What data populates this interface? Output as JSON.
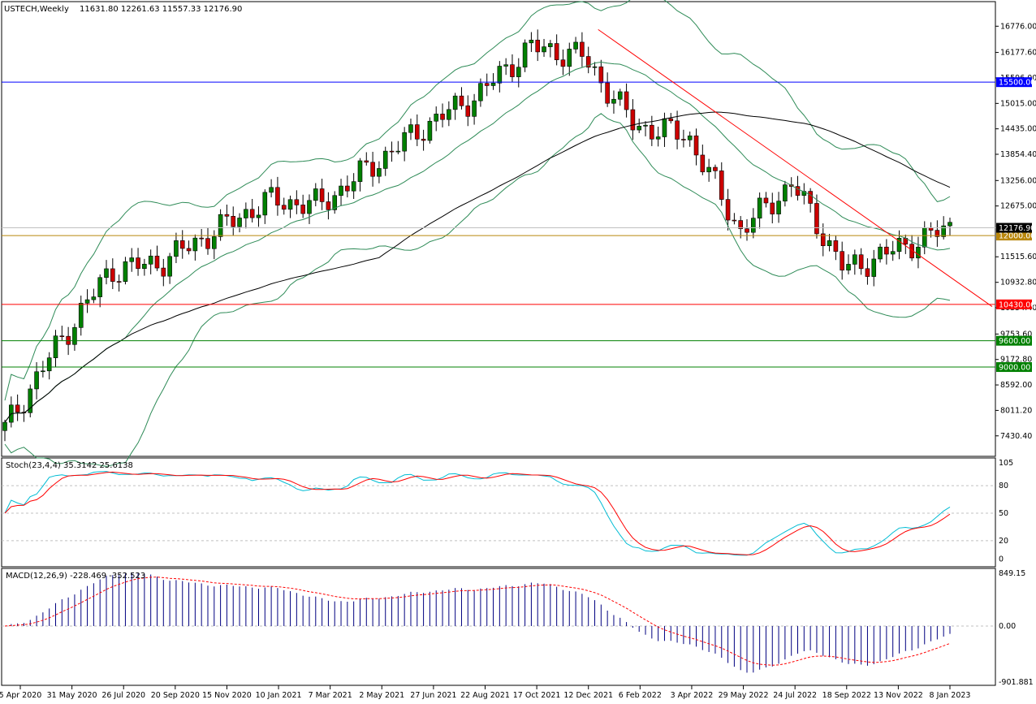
{
  "header": {
    "symbol": "USTECH,Weekly",
    "ohlc": "11631.80 12261.63 11557.33 12176.90"
  },
  "chart_data": {
    "type": "candlestick",
    "symbol": "USTECH",
    "timeframe": "Weekly",
    "price_axis_ticks": [
      "16776.00",
      "16177.60",
      "15596.00",
      "15015.00",
      "14435.00",
      "13854.40",
      "13256.00",
      "12675.00",
      "12176.90",
      "11515.60",
      "10932.80",
      "10354.40",
      "9753.60",
      "9172.80",
      "8592.00",
      "8011.20",
      "7430.40"
    ],
    "date_labels": [
      "5 Apr 2020",
      "31 May 2020",
      "26 Jul 2020",
      "20 Sep 2020",
      "15 Nov 2020",
      "10 Jan 2021",
      "7 Mar 2021",
      "2 May 2021",
      "27 Jun 2021",
      "22 Aug 2021",
      "17 Oct 2021",
      "12 Dec 2021",
      "6 Feb 2022",
      "3 Apr 2022",
      "29 May 2022",
      "24 Jul 2022",
      "18 Sep 2022",
      "13 Nov 2022",
      "8 Jan 2023"
    ],
    "ylim": [
      7430.4,
      17200
    ],
    "horizontal_levels": [
      {
        "label": "15500.00",
        "price": 15500,
        "color": "#0000ff"
      },
      {
        "label": "12000.00",
        "price": 12000,
        "color": "#b8860b"
      },
      {
        "label": "10430.00",
        "price": 10430,
        "color": "#ff0000"
      },
      {
        "label": "9600.00",
        "price": 9600,
        "color": "#008000"
      },
      {
        "label": "9000.00",
        "price": 9000,
        "color": "#008000"
      }
    ],
    "last_price": {
      "label": "12176.90",
      "value": 12176.9
    },
    "trendline": {
      "from_date": "12 Dec 2021",
      "from_price": 16700,
      "to_date": "8 Jan 2023+",
      "to_price": 10380,
      "color": "#ff0000"
    },
    "weekly_close_anchors": [
      {
        "date": "5 Apr 2020",
        "close": 7600
      },
      {
        "date": "31 May 2020",
        "close": 9500
      },
      {
        "date": "26 Jul 2020",
        "close": 11200
      },
      {
        "date": "20 Sep 2020",
        "close": 11400
      },
      {
        "date": "15 Nov 2020",
        "close": 12100
      },
      {
        "date": "10 Jan 2021",
        "close": 12800
      },
      {
        "date": "7 Mar 2021",
        "close": 12700
      },
      {
        "date": "2 May 2021",
        "close": 13600
      },
      {
        "date": "27 Jun 2021",
        "close": 14500
      },
      {
        "date": "22 Aug 2021",
        "close": 15200
      },
      {
        "date": "17 Oct 2021",
        "close": 16300
      },
      {
        "date": "12 Dec 2021",
        "close": 16100
      },
      {
        "date": "6 Feb 2022",
        "close": 14500
      },
      {
        "date": "3 Apr 2022",
        "close": 14300
      },
      {
        "date": "29 May 2022",
        "close": 12100
      },
      {
        "date": "24 Jul 2022",
        "close": 13200
      },
      {
        "date": "18 Sep 2022",
        "close": 11200
      },
      {
        "date": "13 Nov 2022",
        "close": 11700
      },
      {
        "date": "8 Jan 2023",
        "close": 12176.9
      }
    ],
    "moving_average_color": "#000000",
    "bollinger_color": "#2e8b57",
    "bull_color": "#008000",
    "bear_color": "#cc0000"
  },
  "stoch": {
    "label": "Stoch(23,4,4) 35.3142 25.6138",
    "ticks": [
      "105",
      "80",
      "50",
      "20",
      "0"
    ],
    "extra_tick": "-5.00",
    "k_color": "#00bcd4",
    "d_color": "#ff0000"
  },
  "macd": {
    "label": "MACD(12,26,9) -228.469 -352.523",
    "ticks": [
      "849.15",
      "0.00",
      "-901.881"
    ],
    "histogram_color": "#000080",
    "signal_color": "#ff0000"
  }
}
